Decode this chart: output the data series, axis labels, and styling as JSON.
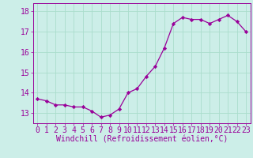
{
  "x": [
    0,
    1,
    2,
    3,
    4,
    5,
    6,
    7,
    8,
    9,
    10,
    11,
    12,
    13,
    14,
    15,
    16,
    17,
    18,
    19,
    20,
    21,
    22,
    23
  ],
  "y": [
    13.7,
    13.6,
    13.4,
    13.4,
    13.3,
    13.3,
    13.1,
    12.8,
    12.9,
    13.2,
    14.0,
    14.2,
    14.8,
    15.3,
    16.2,
    17.4,
    17.7,
    17.6,
    17.6,
    17.4,
    17.6,
    17.8,
    17.5,
    17.0
  ],
  "line_color": "#990099",
  "marker": "D",
  "marker_size": 2.2,
  "bg_color": "#cceee8",
  "grid_color": "#aaddcc",
  "ylabel_ticks": [
    13,
    14,
    15,
    16,
    17,
    18
  ],
  "ylim": [
    12.5,
    18.4
  ],
  "xlim": [
    -0.5,
    23.5
  ],
  "xlabel": "Windchill (Refroidissement éolien,°C)",
  "xlabel_fontsize": 7,
  "tick_fontsize": 7
}
